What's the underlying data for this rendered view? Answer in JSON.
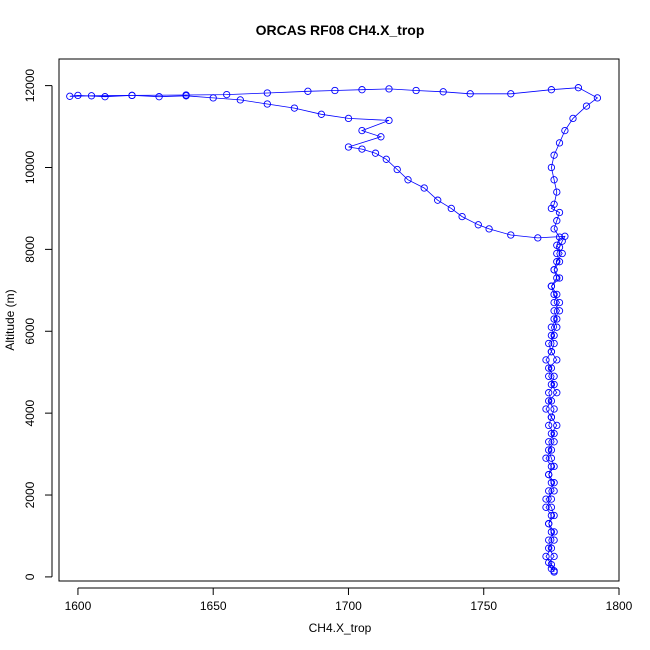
{
  "chart_data": {
    "type": "scatter",
    "title": "ORCAS RF08 CH4.X_trop",
    "xlabel": "CH4.X_trop",
    "ylabel": "Altitude (m)",
    "xlim": [
      1593,
      1800
    ],
    "ylim": [
      -100,
      12650
    ],
    "x_ticks": [
      1600,
      1650,
      1700,
      1750,
      1800
    ],
    "y_ticks": [
      0,
      2000,
      4000,
      6000,
      8000,
      10000,
      12000
    ],
    "grid": false,
    "legend": "none",
    "marker": "open-circle",
    "connect_points": true,
    "color": "#0000ff",
    "points": [
      [
        1776,
        150
      ],
      [
        1775,
        200
      ],
      [
        1774,
        350
      ],
      [
        1776,
        500
      ],
      [
        1774,
        700
      ],
      [
        1776,
        900
      ],
      [
        1775,
        1100
      ],
      [
        1774,
        1300
      ],
      [
        1776,
        1500
      ],
      [
        1775,
        1700
      ],
      [
        1773,
        1900
      ],
      [
        1776,
        2100
      ],
      [
        1775,
        2300
      ],
      [
        1774,
        2500
      ],
      [
        1776,
        2700
      ],
      [
        1775,
        2900
      ],
      [
        1774,
        3100
      ],
      [
        1776,
        3300
      ],
      [
        1775,
        3500
      ],
      [
        1777,
        3700
      ],
      [
        1775,
        3900
      ],
      [
        1776,
        4100
      ],
      [
        1774,
        4300
      ],
      [
        1777,
        4500
      ],
      [
        1775,
        4700
      ],
      [
        1776,
        4900
      ],
      [
        1774,
        5100
      ],
      [
        1777,
        5300
      ],
      [
        1775,
        5500
      ],
      [
        1776,
        5700
      ],
      [
        1775,
        5900
      ],
      [
        1777,
        6100
      ],
      [
        1776,
        6300
      ],
      [
        1778,
        6500
      ],
      [
        1776,
        6700
      ],
      [
        1777,
        6900
      ],
      [
        1775,
        7100
      ],
      [
        1778,
        7300
      ],
      [
        1776,
        7500
      ],
      [
        1778,
        7700
      ],
      [
        1777,
        7900
      ],
      [
        1778,
        8050
      ],
      [
        1779,
        8200
      ],
      [
        1780,
        8320
      ],
      [
        1770,
        8280
      ],
      [
        1760,
        8350
      ],
      [
        1752,
        8500
      ],
      [
        1748,
        8600
      ],
      [
        1742,
        8800
      ],
      [
        1738,
        9000
      ],
      [
        1733,
        9200
      ],
      [
        1728,
        9500
      ],
      [
        1722,
        9700
      ],
      [
        1718,
        9950
      ],
      [
        1714,
        10200
      ],
      [
        1710,
        10350
      ],
      [
        1705,
        10450
      ],
      [
        1700,
        10500
      ],
      [
        1712,
        10750
      ],
      [
        1705,
        10900
      ],
      [
        1715,
        11150
      ],
      [
        1700,
        11200
      ],
      [
        1690,
        11300
      ],
      [
        1680,
        11450
      ],
      [
        1670,
        11550
      ],
      [
        1660,
        11650
      ],
      [
        1650,
        11700
      ],
      [
        1640,
        11750
      ],
      [
        1630,
        11730
      ],
      [
        1620,
        11760
      ],
      [
        1610,
        11730
      ],
      [
        1600,
        11760
      ],
      [
        1597,
        11740
      ],
      [
        1605,
        11750
      ],
      [
        1620,
        11760
      ],
      [
        1640,
        11770
      ],
      [
        1655,
        11780
      ],
      [
        1670,
        11820
      ],
      [
        1685,
        11860
      ],
      [
        1695,
        11880
      ],
      [
        1705,
        11900
      ],
      [
        1715,
        11920
      ],
      [
        1725,
        11880
      ],
      [
        1735,
        11850
      ],
      [
        1745,
        11800
      ],
      [
        1760,
        11800
      ],
      [
        1775,
        11900
      ],
      [
        1785,
        11950
      ],
      [
        1792,
        11700
      ],
      [
        1788,
        11500
      ],
      [
        1783,
        11200
      ],
      [
        1780,
        10900
      ],
      [
        1778,
        10600
      ],
      [
        1776,
        10300
      ],
      [
        1775,
        10000
      ],
      [
        1776,
        9700
      ],
      [
        1777,
        9400
      ],
      [
        1776,
        9100
      ],
      [
        1775,
        9000
      ],
      [
        1778,
        8900
      ],
      [
        1777,
        8700
      ],
      [
        1776,
        8500
      ],
      [
        1778,
        8300
      ],
      [
        1777,
        8100
      ],
      [
        1779,
        7900
      ],
      [
        1777,
        7700
      ],
      [
        1776,
        7500
      ],
      [
        1777,
        7300
      ],
      [
        1775,
        7100
      ],
      [
        1776,
        6900
      ],
      [
        1778,
        6700
      ],
      [
        1776,
        6500
      ],
      [
        1777,
        6300
      ],
      [
        1775,
        6100
      ],
      [
        1776,
        5900
      ],
      [
        1774,
        5700
      ],
      [
        1775,
        5500
      ],
      [
        1773,
        5300
      ],
      [
        1775,
        5100
      ],
      [
        1774,
        4900
      ],
      [
        1776,
        4700
      ],
      [
        1774,
        4500
      ],
      [
        1775,
        4300
      ],
      [
        1773,
        4100
      ],
      [
        1775,
        3900
      ],
      [
        1774,
        3700
      ],
      [
        1776,
        3500
      ],
      [
        1774,
        3300
      ],
      [
        1775,
        3100
      ],
      [
        1773,
        2900
      ],
      [
        1775,
        2700
      ],
      [
        1774,
        2500
      ],
      [
        1776,
        2300
      ],
      [
        1774,
        2100
      ],
      [
        1775,
        1900
      ],
      [
        1773,
        1700
      ],
      [
        1775,
        1500
      ],
      [
        1774,
        1300
      ],
      [
        1776,
        1100
      ],
      [
        1774,
        900
      ],
      [
        1775,
        700
      ],
      [
        1773,
        500
      ],
      [
        1775,
        300
      ],
      [
        1776,
        120
      ]
    ]
  }
}
